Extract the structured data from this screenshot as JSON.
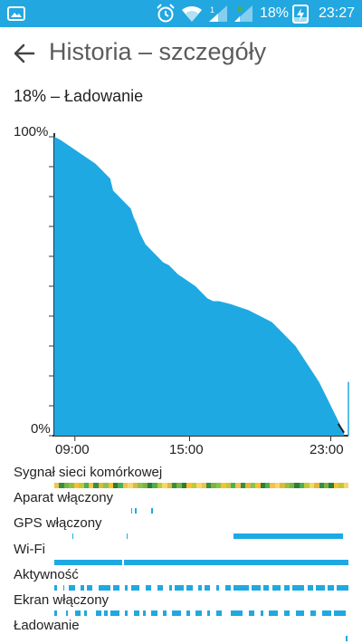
{
  "status_bar": {
    "battery_text": "18%",
    "time": "23:27",
    "icons": [
      "image-notification-icon",
      "alarm-icon",
      "wifi-icon",
      "signal-1-icon",
      "signal-2-icon",
      "battery-charging-icon"
    ]
  },
  "app_bar": {
    "title": "Historia – szczegóły",
    "back_icon": "arrow-left-icon"
  },
  "summary": "18% – Ładowanie",
  "chart_data": {
    "type": "area",
    "title": "",
    "ylim": [
      0,
      100
    ],
    "y_tick_labels": [
      "100%",
      "0%"
    ],
    "x_tick_labels": [
      "09:00",
      "15:00",
      "23:00"
    ],
    "color": "#1fa9e2",
    "series": [
      {
        "points": [
          [
            0,
            100
          ],
          [
            0.02,
            99
          ],
          [
            0.05,
            97
          ],
          [
            0.08,
            95
          ],
          [
            0.11,
            93
          ],
          [
            0.14,
            91
          ],
          [
            0.17,
            88
          ],
          [
            0.19,
            86
          ],
          [
            0.2,
            82
          ],
          [
            0.22,
            80
          ],
          [
            0.24,
            78
          ],
          [
            0.26,
            76
          ],
          [
            0.27,
            73
          ],
          [
            0.28,
            71
          ],
          [
            0.29,
            68
          ],
          [
            0.3,
            66
          ],
          [
            0.31,
            64
          ],
          [
            0.33,
            62
          ],
          [
            0.35,
            60
          ],
          [
            0.37,
            58
          ],
          [
            0.39,
            57
          ],
          [
            0.42,
            54
          ],
          [
            0.45,
            52
          ],
          [
            0.48,
            50
          ],
          [
            0.5,
            48
          ],
          [
            0.52,
            46
          ],
          [
            0.54,
            45
          ],
          [
            0.56,
            45
          ],
          [
            0.6,
            44
          ],
          [
            0.63,
            43
          ],
          [
            0.66,
            42
          ],
          [
            0.7,
            40
          ],
          [
            0.74,
            38
          ],
          [
            0.78,
            34
          ],
          [
            0.82,
            30
          ],
          [
            0.86,
            24
          ],
          [
            0.9,
            18
          ],
          [
            0.93,
            12
          ],
          [
            0.95,
            8
          ],
          [
            0.97,
            4
          ],
          [
            0.98,
            2
          ],
          [
            0.985,
            1
          ]
        ]
      }
    ]
  },
  "rows": [
    {
      "label": "Sygnał sieci komórkowej",
      "type": "signal"
    },
    {
      "label": "Aparat włączony",
      "type": "ticks",
      "segments": [
        [
          0.26,
          0.003
        ],
        [
          0.275,
          0.003
        ],
        [
          0.33,
          0.002
        ]
      ]
    },
    {
      "label": "GPS włączony",
      "type": "ticks",
      "segments": [
        [
          0.06,
          0.004
        ],
        [
          0.245,
          0.004
        ],
        [
          0.61,
          0.37
        ]
      ]
    },
    {
      "label": "Wi-Fi",
      "type": "ticks",
      "segments": [
        [
          0.0,
          0.23
        ],
        [
          0.236,
          0.764
        ]
      ]
    },
    {
      "label": "Aktywność",
      "type": "ticks",
      "segments": [
        [
          0.0,
          0.01
        ],
        [
          0.03,
          0.005
        ],
        [
          0.05,
          0.02
        ],
        [
          0.09,
          0.01
        ],
        [
          0.11,
          0.02
        ],
        [
          0.15,
          0.04
        ],
        [
          0.2,
          0.02
        ],
        [
          0.24,
          0.01
        ],
        [
          0.26,
          0.03
        ],
        [
          0.31,
          0.02
        ],
        [
          0.35,
          0.02
        ],
        [
          0.39,
          0.01
        ],
        [
          0.41,
          0.03
        ],
        [
          0.45,
          0.02
        ],
        [
          0.49,
          0.01
        ],
        [
          0.51,
          0.02
        ],
        [
          0.55,
          0.01
        ],
        [
          0.58,
          0.02
        ],
        [
          0.61,
          0.05
        ],
        [
          0.67,
          0.03
        ],
        [
          0.71,
          0.02
        ],
        [
          0.74,
          0.03
        ],
        [
          0.78,
          0.02
        ],
        [
          0.81,
          0.04
        ],
        [
          0.86,
          0.02
        ],
        [
          0.89,
          0.03
        ],
        [
          0.93,
          0.02
        ],
        [
          0.96,
          0.04
        ]
      ]
    },
    {
      "label": "Ekran włączony",
      "type": "ticks",
      "segments": [
        [
          0.0,
          0.01
        ],
        [
          0.04,
          0.006
        ],
        [
          0.07,
          0.02
        ],
        [
          0.1,
          0.01
        ],
        [
          0.14,
          0.02
        ],
        [
          0.17,
          0.01
        ],
        [
          0.19,
          0.03
        ],
        [
          0.24,
          0.01
        ],
        [
          0.27,
          0.02
        ],
        [
          0.3,
          0.01
        ],
        [
          0.33,
          0.02
        ],
        [
          0.37,
          0.01
        ],
        [
          0.4,
          0.03
        ],
        [
          0.45,
          0.01
        ],
        [
          0.48,
          0.02
        ],
        [
          0.52,
          0.01
        ],
        [
          0.55,
          0.02
        ],
        [
          0.6,
          0.04
        ],
        [
          0.66,
          0.02
        ],
        [
          0.7,
          0.01
        ],
        [
          0.73,
          0.03
        ],
        [
          0.78,
          0.02
        ],
        [
          0.82,
          0.03
        ],
        [
          0.87,
          0.02
        ],
        [
          0.91,
          0.03
        ],
        [
          0.95,
          0.04
        ]
      ]
    },
    {
      "label": "Ładowanie",
      "type": "ticks",
      "segments": [
        [
          0.99,
          0.006
        ]
      ]
    }
  ]
}
